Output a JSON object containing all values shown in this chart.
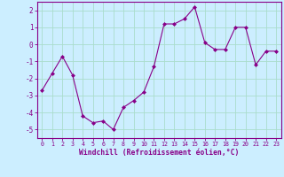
{
  "x": [
    0,
    1,
    2,
    3,
    4,
    5,
    6,
    7,
    8,
    9,
    10,
    11,
    12,
    13,
    14,
    15,
    16,
    17,
    18,
    19,
    20,
    21,
    22,
    23
  ],
  "y": [
    -2.7,
    -1.7,
    -0.7,
    -1.8,
    -4.2,
    -4.6,
    -4.5,
    -5.0,
    -3.7,
    -3.3,
    -2.8,
    -1.3,
    1.2,
    1.2,
    1.5,
    2.2,
    0.1,
    -0.3,
    -0.3,
    1.0,
    1.0,
    -1.2,
    -0.4,
    -0.4
  ],
  "line_color": "#880088",
  "marker_color": "#880088",
  "bg_color": "#cceeff",
  "grid_color": "#aaddcc",
  "xlabel": "Windchill (Refroidissement éolien,°C)",
  "ylim": [
    -5.5,
    2.5
  ],
  "xlim": [
    -0.5,
    23.5
  ],
  "yticks": [
    -5,
    -4,
    -3,
    -2,
    -1,
    0,
    1,
    2
  ],
  "xtick_labels": [
    "0",
    "1",
    "2",
    "3",
    "4",
    "5",
    "6",
    "7",
    "8",
    "9",
    "10",
    "11",
    "12",
    "13",
    "14",
    "15",
    "16",
    "17",
    "18",
    "19",
    "20",
    "21",
    "22",
    "23"
  ],
  "tick_color": "#880088",
  "axis_color": "#880088"
}
